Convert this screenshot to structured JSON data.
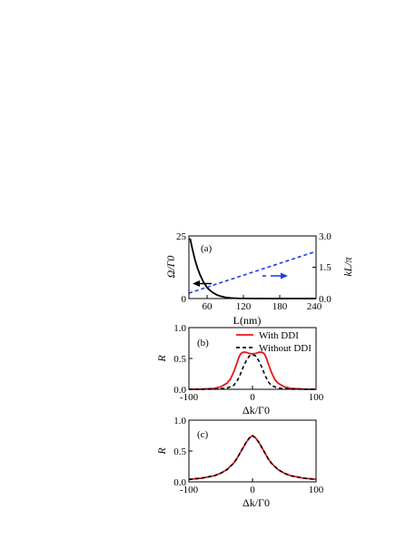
{
  "colors": {
    "red": "#e8141b",
    "blue": "#1f3fe6",
    "black": "#000000"
  },
  "chart_data": [
    {
      "type": "line",
      "panel_label": "(a)",
      "xlabel": "L(nm)",
      "ylabel_left": "Ω/Γ0",
      "ylabel_right": "kL/π",
      "xlim": [
        30,
        240
      ],
      "ylim_left": [
        0,
        25
      ],
      "ylim_right": [
        0,
        3
      ],
      "xticks": [
        "60",
        "120",
        "180",
        "240"
      ],
      "yticks_left": [
        "0",
        "25"
      ],
      "yticks_right": [
        "0.0",
        "1.5",
        "3.0"
      ],
      "series": [
        {
          "axis": "left",
          "color": "black",
          "style": "solid",
          "x": [
            32,
            36,
            40,
            44,
            48,
            52,
            56,
            60,
            65,
            70,
            75,
            80,
            90,
            100,
            110,
            120,
            140,
            160,
            180,
            200,
            220,
            240
          ],
          "y": [
            24,
            19.5,
            15.5,
            12.3,
            9.7,
            7.6,
            5.8,
            4.4,
            3.2,
            2.3,
            1.6,
            1.1,
            0.5,
            0.22,
            0.1,
            0.05,
            0.02,
            0.01,
            0.005,
            0.003,
            0.002,
            0.001
          ]
        },
        {
          "axis": "right",
          "color": "blue",
          "style": "dashed",
          "x": [
            30,
            240
          ],
          "y": [
            0.26,
            2.26
          ]
        }
      ]
    },
    {
      "type": "line",
      "panel_label": "(b)",
      "xlabel": "Δk/Γ0",
      "ylabel": "R",
      "xlim": [
        -100,
        100
      ],
      "ylim": [
        0,
        1
      ],
      "xticks": [
        "-100",
        "0",
        "100"
      ],
      "yticks": [
        "0.0",
        "0.5",
        "1.0"
      ],
      "legend": "top-right",
      "series": [
        {
          "name": "With DDI",
          "color": "red",
          "style": "solid",
          "x": [
            -100,
            -80,
            -60,
            -50,
            -40,
            -35,
            -30,
            -25,
            -22,
            -20,
            -18,
            -15,
            -12,
            -10,
            -5,
            0,
            5,
            10,
            12,
            15,
            18,
            20,
            22,
            25,
            30,
            35,
            40,
            50,
            60,
            80,
            100
          ],
          "y": [
            0.0,
            0.003,
            0.015,
            0.04,
            0.1,
            0.16,
            0.27,
            0.41,
            0.5,
            0.55,
            0.58,
            0.6,
            0.6,
            0.6,
            0.58,
            0.575,
            0.58,
            0.6,
            0.6,
            0.6,
            0.58,
            0.55,
            0.5,
            0.41,
            0.27,
            0.16,
            0.1,
            0.04,
            0.015,
            0.003,
            0.0
          ]
        },
        {
          "name": "Without DDI",
          "color": "black",
          "style": "dashed",
          "x": [
            -100,
            -60,
            -40,
            -30,
            -25,
            -20,
            -15,
            -10,
            -5,
            0,
            5,
            10,
            15,
            20,
            25,
            30,
            40,
            60,
            100
          ],
          "y": [
            0.0,
            0.003,
            0.02,
            0.06,
            0.12,
            0.22,
            0.35,
            0.46,
            0.54,
            0.56,
            0.54,
            0.46,
            0.35,
            0.22,
            0.12,
            0.06,
            0.02,
            0.003,
            0.0
          ]
        }
      ]
    },
    {
      "type": "line",
      "panel_label": "(c)",
      "xlabel": "Δk/Γ0",
      "ylabel": "R",
      "xlim": [
        -100,
        100
      ],
      "ylim": [
        0,
        1
      ],
      "xticks": [
        "-100",
        "0",
        "100"
      ],
      "yticks": [
        "0.0",
        "0.5",
        "1.0"
      ],
      "series": [
        {
          "name": "With DDI",
          "color": "red",
          "style": "solid",
          "x": [
            -100,
            -80,
            -60,
            -50,
            -40,
            -30,
            -25,
            -20,
            -15,
            -10,
            -5,
            0,
            5,
            10,
            15,
            20,
            25,
            30,
            40,
            50,
            60,
            80,
            100
          ],
          "y": [
            0.04,
            0.06,
            0.1,
            0.14,
            0.2,
            0.3,
            0.37,
            0.46,
            0.55,
            0.64,
            0.71,
            0.75,
            0.71,
            0.64,
            0.55,
            0.46,
            0.37,
            0.3,
            0.2,
            0.14,
            0.1,
            0.06,
            0.04
          ]
        },
        {
          "name": "Without DDI",
          "color": "black",
          "style": "dashed",
          "x": [
            -100,
            -80,
            -60,
            -50,
            -40,
            -30,
            -25,
            -20,
            -15,
            -10,
            -5,
            0,
            5,
            10,
            15,
            20,
            25,
            30,
            40,
            50,
            60,
            80,
            100
          ],
          "y": [
            0.04,
            0.06,
            0.1,
            0.14,
            0.2,
            0.3,
            0.37,
            0.46,
            0.55,
            0.64,
            0.71,
            0.75,
            0.71,
            0.64,
            0.55,
            0.46,
            0.37,
            0.3,
            0.2,
            0.14,
            0.1,
            0.06,
            0.04
          ]
        }
      ]
    }
  ]
}
